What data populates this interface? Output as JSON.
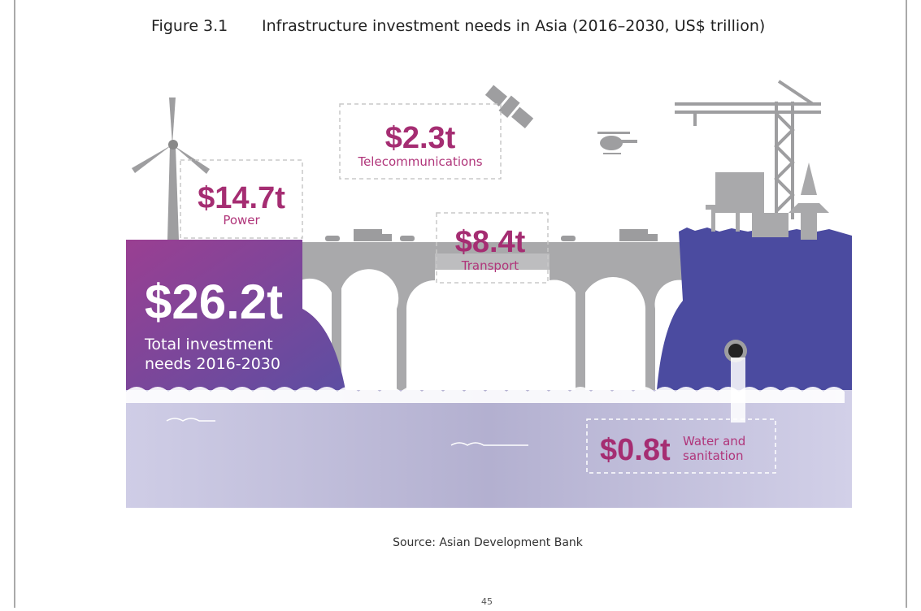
{
  "header": {
    "figure": "Figure 3.1",
    "title": "Infrastructure investment needs in Asia (2016–2030, US$ trillion)"
  },
  "infographic": {
    "total": {
      "amount": "$26.2t",
      "label_lines": [
        "Total investment",
        "needs 2016-2030"
      ]
    },
    "power": {
      "amount": "$14.7t",
      "label": "Power"
    },
    "telecommunications": {
      "amount": "$2.3t",
      "label": "Telecommunications"
    },
    "transport": {
      "amount": "$8.4t",
      "label": "Transport"
    },
    "water": {
      "amount": "$0.8t",
      "label_lines": [
        "Water and",
        "sanitation"
      ]
    }
  },
  "footer": {
    "source": "Source: Asian Development Bank",
    "page_number": "45"
  }
}
